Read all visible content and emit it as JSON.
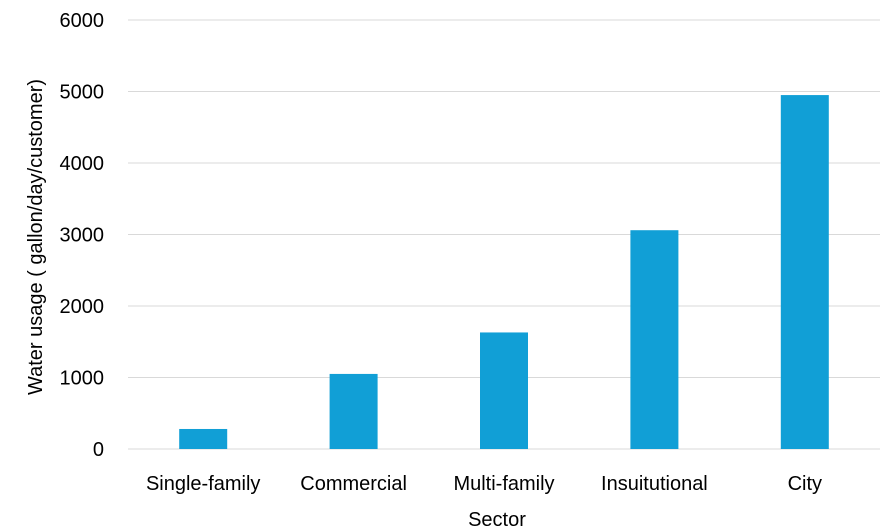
{
  "chart_data": {
    "type": "bar",
    "categories": [
      "Single-family",
      "Commercial",
      "Multi-family",
      "Insuitutional",
      "City"
    ],
    "values": [
      280,
      1050,
      1630,
      3060,
      4950
    ],
    "xlabel": "Sector",
    "ylabel": "Water usage ( gallon/day/customer)",
    "ylim": [
      0,
      6000
    ],
    "yticks": [
      0,
      1000,
      2000,
      3000,
      4000,
      5000,
      6000
    ],
    "grid": true,
    "legend": "none",
    "bar_color": "#119fd6"
  }
}
